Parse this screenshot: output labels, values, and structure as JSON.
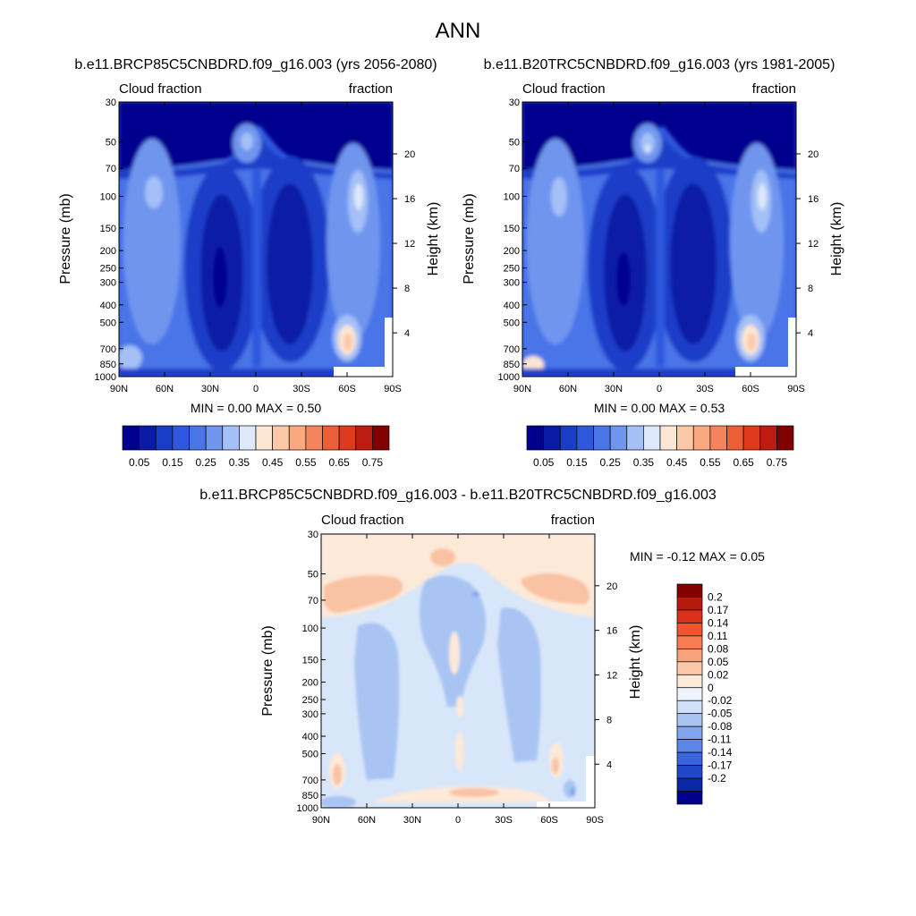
{
  "page_title": "ANN",
  "chart_data": [
    {
      "type": "heatmap",
      "title": "b.e11.BRCP85C5CNBDRD.f09_g16.003 (yrs 2056-2080)",
      "left_label": "Cloud fraction",
      "right_label": "fraction",
      "ylabel": "Pressure (mb)",
      "ylabel_right": "Height (km)",
      "x_ticks": [
        "90N",
        "60N",
        "30N",
        "0",
        "30S",
        "60S",
        "90S"
      ],
      "y_ticks": [
        "30",
        "50",
        "70",
        "100",
        "150",
        "200",
        "250",
        "300",
        "400",
        "500",
        "700",
        "850",
        "1000"
      ],
      "height_ticks": [
        "20",
        "16",
        "12",
        "8",
        "4"
      ],
      "min_text": "MIN =   0.00  MAX =   0.50",
      "colorbar": {
        "labels": [
          "0.05",
          "0.15",
          "0.25",
          "0.35",
          "0.45",
          "0.55",
          "0.65",
          "0.75"
        ],
        "colors": [
          "#00008f",
          "#0a1ca6",
          "#1a3dc8",
          "#2f58de",
          "#4a75e8",
          "#6f95ef",
          "#a4c0f7",
          "#dde8fb",
          "#fde6d4",
          "#fcc8a8",
          "#f9a880",
          "#f4845c",
          "#ec5e36",
          "#de3a1c",
          "#bb1d10",
          "#810000"
        ]
      }
    },
    {
      "type": "heatmap",
      "title": "b.e11.B20TRC5CNBDRD.f09_g16.003 (yrs 1981-2005)",
      "left_label": "Cloud fraction",
      "right_label": "fraction",
      "ylabel": "Pressure (mb)",
      "ylabel_right": "Height (km)",
      "x_ticks": [
        "90N",
        "60N",
        "30N",
        "0",
        "30S",
        "60S",
        "90S"
      ],
      "y_ticks": [
        "30",
        "50",
        "70",
        "100",
        "150",
        "200",
        "250",
        "300",
        "400",
        "500",
        "700",
        "850",
        "1000"
      ],
      "height_ticks": [
        "20",
        "16",
        "12",
        "8",
        "4"
      ],
      "min_text": "MIN =   0.00  MAX =   0.53",
      "colorbar": {
        "labels": [
          "0.05",
          "0.15",
          "0.25",
          "0.35",
          "0.45",
          "0.55",
          "0.65",
          "0.75"
        ],
        "colors": [
          "#00008f",
          "#0a1ca6",
          "#1a3dc8",
          "#2f58de",
          "#4a75e8",
          "#6f95ef",
          "#a4c0f7",
          "#dde8fb",
          "#fde6d4",
          "#fcc8a8",
          "#f9a880",
          "#f4845c",
          "#ec5e36",
          "#de3a1c",
          "#bb1d10",
          "#810000"
        ]
      }
    },
    {
      "type": "heatmap",
      "title": "b.e11.BRCP85C5CNBDRD.f09_g16.003 - b.e11.B20TRC5CNBDRD.f09_g16.003",
      "left_label": "Cloud fraction",
      "right_label": "fraction",
      "ylabel": "Pressure (mb)",
      "ylabel_right": "Height (km)",
      "x_ticks": [
        "90N",
        "60N",
        "30N",
        "0",
        "30S",
        "60S",
        "90S"
      ],
      "y_ticks": [
        "30",
        "50",
        "70",
        "100",
        "150",
        "200",
        "250",
        "300",
        "400",
        "500",
        "700",
        "850",
        "1000"
      ],
      "height_ticks": [
        "20",
        "16",
        "12",
        "8",
        "4"
      ],
      "min_text": "MIN =  -0.12  MAX =   0.05",
      "colorbar": {
        "labels": [
          "0.2",
          "0.17",
          "0.14",
          "0.11",
          "0.08",
          "0.05",
          "0.02",
          "0",
          "-0.02",
          "-0.05",
          "-0.08",
          "-0.11",
          "-0.14",
          "-0.17",
          "-0.2"
        ],
        "colors": [
          "#810000",
          "#b51a0e",
          "#d8321a",
          "#ef552f",
          "#f77c52",
          "#f9a37c",
          "#fcc8a8",
          "#fde9d8",
          "#eef4fc",
          "#cfe0f8",
          "#a9c4f3",
          "#82a6ee",
          "#5a87e8",
          "#3666de",
          "#1f47c9",
          "#0a28a6",
          "#00008f"
        ]
      }
    }
  ]
}
